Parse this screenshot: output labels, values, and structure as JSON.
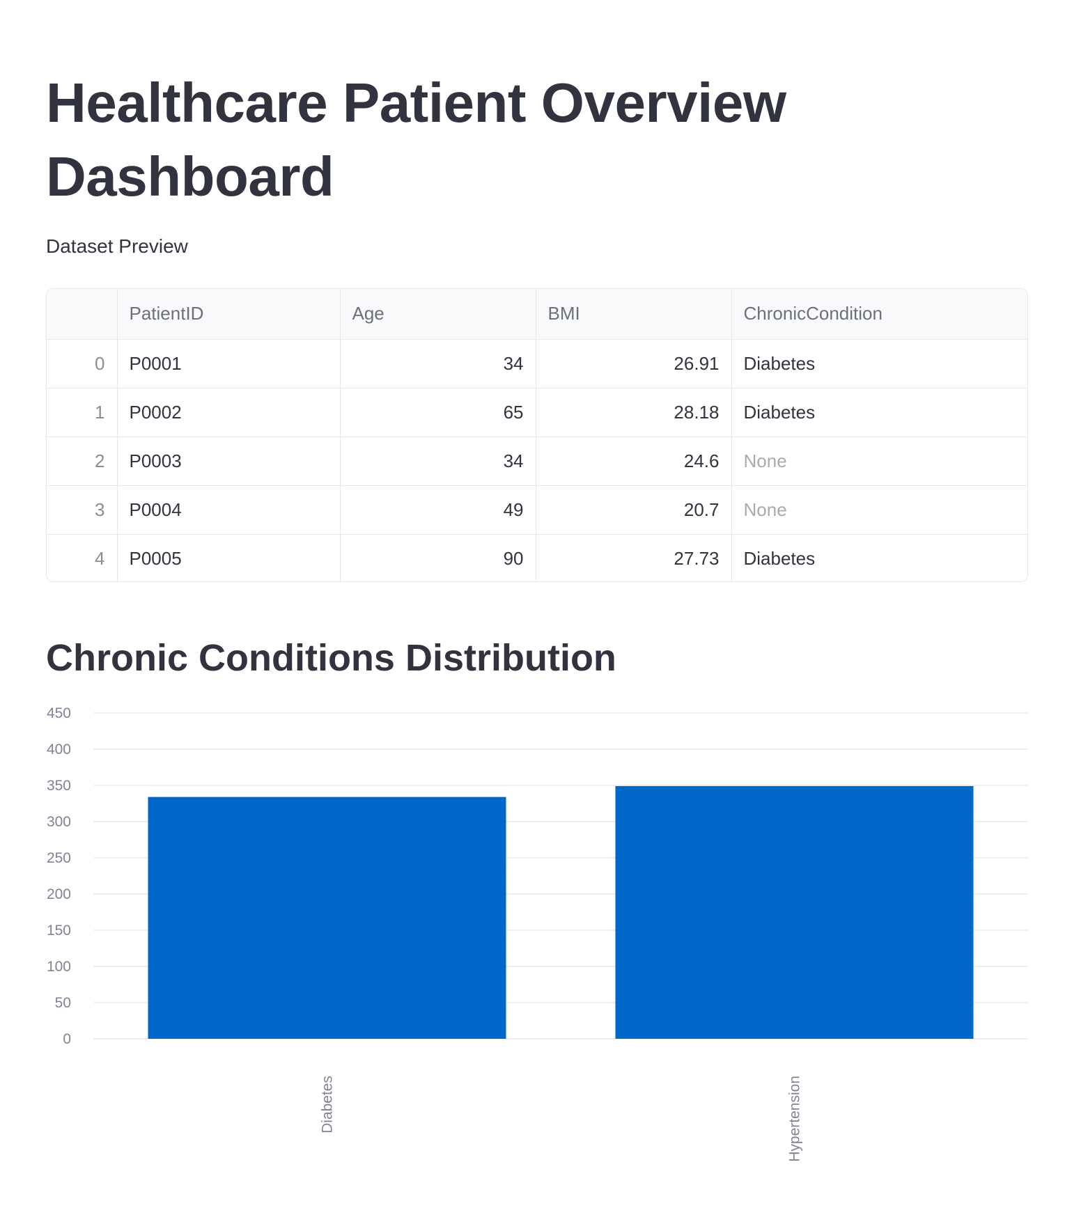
{
  "page": {
    "title": "Healthcare Patient Overview Dashboard",
    "dataset_caption": "Dataset Preview"
  },
  "table": {
    "columns": [
      "",
      "PatientID",
      "Age",
      "BMI",
      "ChronicCondition"
    ],
    "rows": [
      {
        "index": "0",
        "patient_id": "P0001",
        "age": "34",
        "bmi": "26.91",
        "condition": "Diabetes"
      },
      {
        "index": "1",
        "patient_id": "P0002",
        "age": "65",
        "bmi": "28.18",
        "condition": "Diabetes"
      },
      {
        "index": "2",
        "patient_id": "P0003",
        "age": "34",
        "bmi": "24.6",
        "condition": "None"
      },
      {
        "index": "3",
        "patient_id": "P0004",
        "age": "49",
        "bmi": "20.7",
        "condition": "None"
      },
      {
        "index": "4",
        "patient_id": "P0005",
        "age": "90",
        "bmi": "27.73",
        "condition": "Diabetes"
      }
    ]
  },
  "chart_section": {
    "title": "Chronic Conditions Distribution"
  },
  "chart_data": {
    "type": "bar",
    "categories": [
      "Diabetes",
      "Hypertension"
    ],
    "values": [
      334,
      349
    ],
    "title": "",
    "xlabel": "",
    "ylabel": "",
    "ylim": [
      0,
      450
    ],
    "yticks": [
      0,
      50,
      100,
      150,
      200,
      250,
      300,
      350,
      400,
      450
    ],
    "grid": true,
    "bar_color": "#0068c9",
    "grid_color": "#e6e8ec",
    "tick_color": "#808495"
  }
}
